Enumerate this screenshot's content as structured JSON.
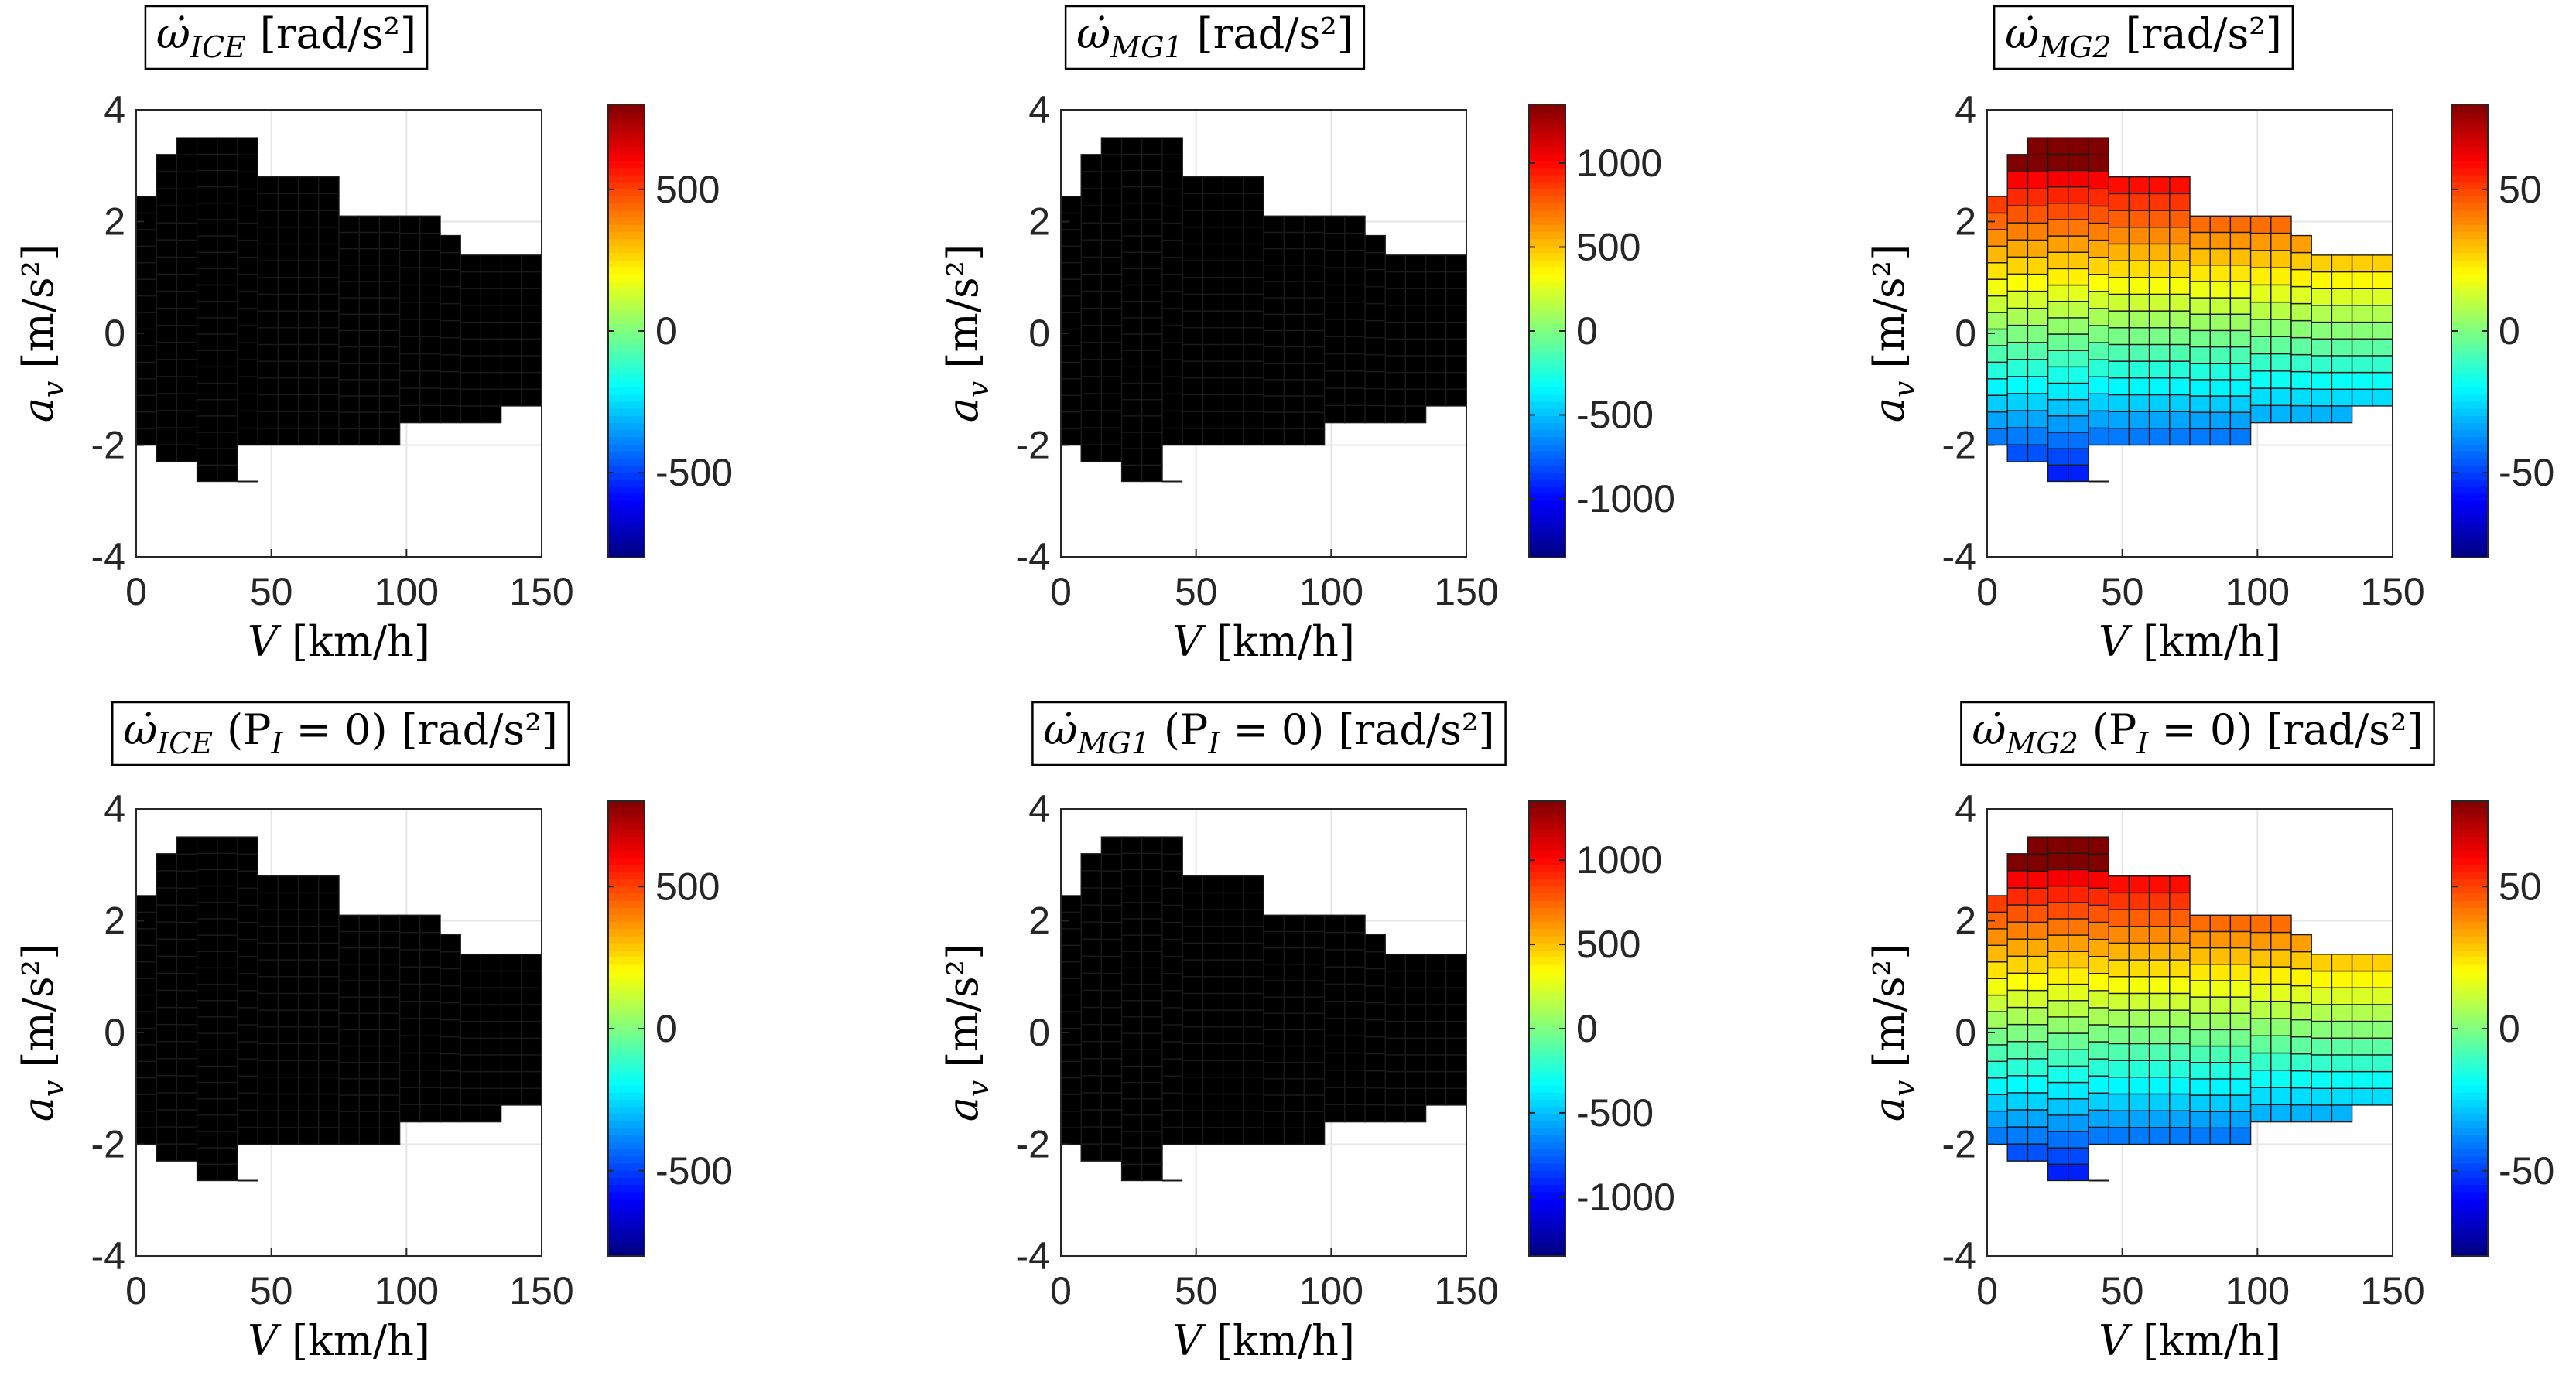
{
  "figure": {
    "description_title": "Six heat maps of acceleration versus vehicle speed",
    "common": {
      "xlabel": "V [km/h]",
      "ylabel": "a_v [m/s²]",
      "xlim": [
        0,
        150
      ],
      "ylim": [
        -4,
        4
      ],
      "xticks": [
        "0",
        "50",
        "100",
        "150"
      ],
      "yticks": [
        "4",
        "2",
        "0",
        "-2",
        "-4"
      ],
      "grid": true,
      "colormap": "jet"
    }
  },
  "chart_data": [
    {
      "type": "heatmap",
      "title_main": "ω̇",
      "title_sub": "ICE",
      "title_mid": "",
      "title_unit": "[rad/s²]",
      "field": "ice",
      "xlabel_var": "V",
      "xlabel_unit": "[km/h]",
      "ylabel_var": "a",
      "ylabel_sub": "v",
      "ylabel_unit": "[m/s²]",
      "xlim": [
        0,
        150
      ],
      "ylim": [
        -4,
        4
      ],
      "clim": [
        -800,
        800
      ],
      "colorbar_ticks": [
        500,
        0,
        -500
      ],
      "colorbar_labels": [
        "500",
        "0",
        "-500"
      ],
      "x_tick_labels": [
        "0",
        "50",
        "100",
        "150"
      ],
      "y_tick_labels": [
        "4",
        "2",
        "0",
        "-2",
        "-4"
      ]
    },
    {
      "type": "heatmap",
      "title_main": "ω̇",
      "title_sub": "MG1",
      "title_mid": "",
      "title_unit": "[rad/s²]",
      "field": "mg1",
      "xlabel_var": "V",
      "xlabel_unit": "[km/h]",
      "ylabel_var": "a",
      "ylabel_sub": "v",
      "ylabel_unit": "[m/s²]",
      "xlim": [
        0,
        150
      ],
      "ylim": [
        -4,
        4
      ],
      "clim": [
        -1350,
        1350
      ],
      "colorbar_ticks": [
        1000,
        500,
        0,
        -500,
        -1000
      ],
      "colorbar_labels": [
        "1000",
        "500",
        "0",
        "-500",
        "-1000"
      ],
      "x_tick_labels": [
        "0",
        "50",
        "100",
        "150"
      ],
      "y_tick_labels": [
        "4",
        "2",
        "0",
        "-2",
        "-4"
      ]
    },
    {
      "type": "heatmap",
      "title_main": "ω̇",
      "title_sub": "MG2",
      "title_mid": "",
      "title_unit": "[rad/s²]",
      "field": "mg2",
      "xlabel_var": "V",
      "xlabel_unit": "[km/h]",
      "ylabel_var": "a",
      "ylabel_sub": "v",
      "ylabel_unit": "[m/s²]",
      "xlim": [
        0,
        150
      ],
      "ylim": [
        -4,
        4
      ],
      "clim": [
        -80,
        80
      ],
      "colorbar_ticks": [
        50,
        0,
        -50
      ],
      "colorbar_labels": [
        "50",
        "0",
        "-50"
      ],
      "x_tick_labels": [
        "0",
        "50",
        "100",
        "150"
      ],
      "y_tick_labels": [
        "4",
        "2",
        "0",
        "-2",
        "-4"
      ]
    },
    {
      "type": "heatmap",
      "title_main": "ω̇",
      "title_sub": "ICE",
      "title_mid": "(P",
      "title_mid_sub": "I",
      "title_mid_end": " = 0)",
      "title_unit": "[rad/s²]",
      "field": "ice0",
      "xlabel_var": "V",
      "xlabel_unit": "[km/h]",
      "ylabel_var": "a",
      "ylabel_sub": "v",
      "ylabel_unit": "[m/s²]",
      "xlim": [
        0,
        150
      ],
      "ylim": [
        -4,
        4
      ],
      "clim": [
        -800,
        800
      ],
      "colorbar_ticks": [
        500,
        0,
        -500
      ],
      "colorbar_labels": [
        "500",
        "0",
        "-500"
      ],
      "x_tick_labels": [
        "0",
        "50",
        "100",
        "150"
      ],
      "y_tick_labels": [
        "4",
        "2",
        "0",
        "-2",
        "-4"
      ]
    },
    {
      "type": "heatmap",
      "title_main": "ω̇",
      "title_sub": "MG1",
      "title_mid": "(P",
      "title_mid_sub": "I",
      "title_mid_end": " = 0)",
      "title_unit": "[rad/s²]",
      "field": "mg10",
      "xlabel_var": "V",
      "xlabel_unit": "[km/h]",
      "ylabel_var": "a",
      "ylabel_sub": "v",
      "ylabel_unit": "[m/s²]",
      "xlim": [
        0,
        150
      ],
      "ylim": [
        -4,
        4
      ],
      "clim": [
        -1350,
        1350
      ],
      "colorbar_ticks": [
        1000,
        500,
        0,
        -500,
        -1000
      ],
      "colorbar_labels": [
        "1000",
        "500",
        "0",
        "-500",
        "-1000"
      ],
      "x_tick_labels": [
        "0",
        "50",
        "100",
        "150"
      ],
      "y_tick_labels": [
        "4",
        "2",
        "0",
        "-2",
        "-4"
      ]
    },
    {
      "type": "heatmap",
      "title_main": "ω̇",
      "title_sub": "MG2",
      "title_mid": "(P",
      "title_mid_sub": "I",
      "title_mid_end": " = 0)",
      "title_unit": "[rad/s²]",
      "field": "mg2",
      "xlabel_var": "V",
      "xlabel_unit": "[km/h]",
      "ylabel_var": "a",
      "ylabel_sub": "v",
      "ylabel_unit": "[m/s²]",
      "xlim": [
        0,
        150
      ],
      "ylim": [
        -4,
        4
      ],
      "clim": [
        -80,
        80
      ],
      "colorbar_ticks": [
        50,
        0,
        -50
      ],
      "colorbar_labels": [
        "50",
        "0",
        "-50"
      ],
      "x_tick_labels": [
        "0",
        "50",
        "100",
        "150"
      ],
      "y_tick_labels": [
        "4",
        "2",
        "0",
        "-2",
        "-4"
      ]
    }
  ],
  "grid_domain": {
    "cell_dv_kmh": 7.5,
    "cell_da_ms2": 0.3,
    "columns": [
      {
        "v": [
          0,
          7.5
        ],
        "a": [
          -2.0,
          2.45
        ]
      },
      {
        "v": [
          7.5,
          15
        ],
        "a": [
          -2.3,
          3.2
        ]
      },
      {
        "v": [
          15,
          22.5
        ],
        "a": [
          -2.3,
          3.5
        ]
      },
      {
        "v": [
          22.5,
          30
        ],
        "a": [
          -2.65,
          3.5
        ]
      },
      {
        "v": [
          30,
          37.5
        ],
        "a": [
          -2.65,
          3.5
        ]
      },
      {
        "v": [
          37.5,
          45
        ],
        "a": [
          -2.0,
          3.5
        ]
      },
      {
        "v": [
          45,
          52.5
        ],
        "a": [
          -2.0,
          2.8
        ]
      },
      {
        "v": [
          52.5,
          60
        ],
        "a": [
          -2.0,
          2.8
        ]
      },
      {
        "v": [
          60,
          67.5
        ],
        "a": [
          -2.0,
          2.8
        ]
      },
      {
        "v": [
          67.5,
          75
        ],
        "a": [
          -2.0,
          2.8
        ]
      },
      {
        "v": [
          75,
          82.5
        ],
        "a": [
          -2.0,
          2.1
        ]
      },
      {
        "v": [
          82.5,
          90
        ],
        "a": [
          -2.0,
          2.1
        ]
      },
      {
        "v": [
          90,
          97.5
        ],
        "a": [
          -2.0,
          2.1
        ]
      },
      {
        "v": [
          97.5,
          105
        ],
        "a": [
          -1.6,
          2.1
        ]
      },
      {
        "v": [
          105,
          112.5
        ],
        "a": [
          -1.6,
          2.1
        ]
      },
      {
        "v": [
          112.5,
          120
        ],
        "a": [
          -1.6,
          1.75
        ]
      },
      {
        "v": [
          120,
          127.5
        ],
        "a": [
          -1.6,
          1.4
        ]
      },
      {
        "v": [
          127.5,
          135
        ],
        "a": [
          -1.6,
          1.4
        ]
      },
      {
        "v": [
          135,
          142.5
        ],
        "a": [
          -1.3,
          1.4
        ]
      },
      {
        "v": [
          142.5,
          150
        ],
        "a": [
          -1.3,
          1.4
        ]
      }
    ]
  }
}
